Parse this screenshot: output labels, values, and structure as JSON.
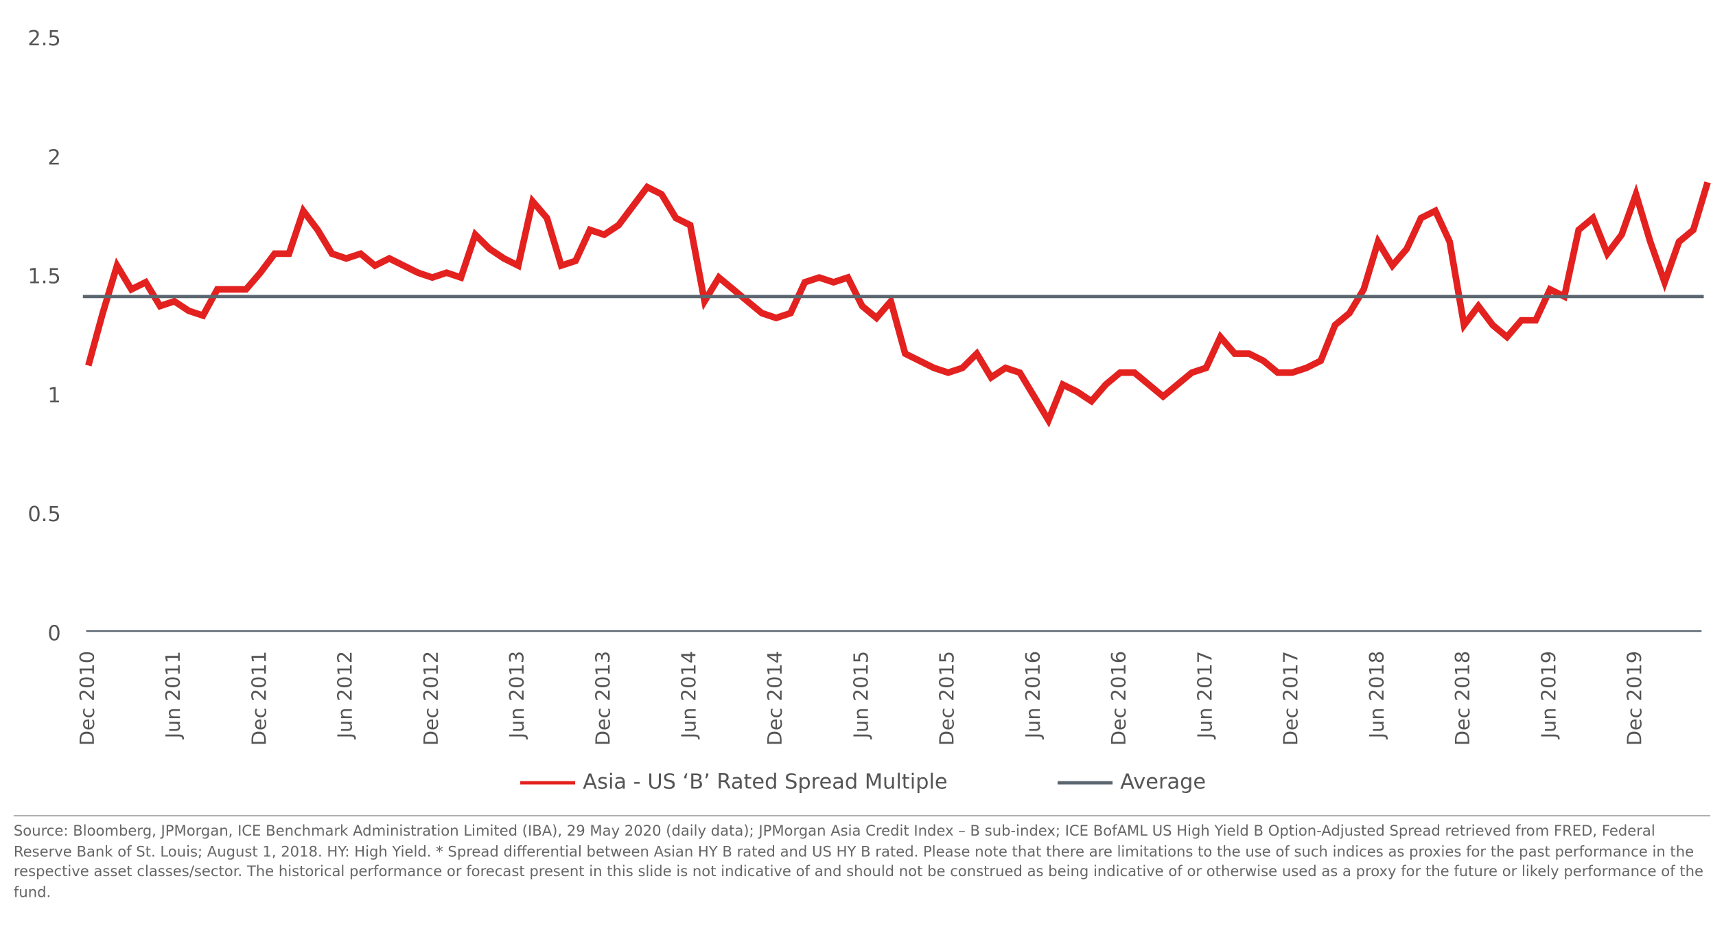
{
  "chart_data": {
    "type": "line",
    "x": [
      "Dec 2010",
      "Jan 2011",
      "Feb 2011",
      "Mar 2011",
      "Apr 2011",
      "May 2011",
      "Jun 2011",
      "Jul 2011",
      "Aug 2011",
      "Sep 2011",
      "Oct 2011",
      "Nov 2011",
      "Dec 2011",
      "Jan 2012",
      "Feb 2012",
      "Mar 2012",
      "Apr 2012",
      "May 2012",
      "Jun 2012",
      "Jul 2012",
      "Aug 2012",
      "Sep 2012",
      "Oct 2012",
      "Nov 2012",
      "Dec 2012",
      "Jan 2013",
      "Feb 2013",
      "Mar 2013",
      "Apr 2013",
      "May 2013",
      "Jun 2013",
      "Jul 2013",
      "Aug 2013",
      "Sep 2013",
      "Oct 2013",
      "Nov 2013",
      "Dec 2013",
      "Jan 2014",
      "Feb 2014",
      "Mar 2014",
      "Apr 2014",
      "May 2014",
      "Jun 2014",
      "Jul 2014",
      "Aug 2014",
      "Sep 2014",
      "Oct 2014",
      "Nov 2014",
      "Dec 2014",
      "Jan 2015",
      "Feb 2015",
      "Mar 2015",
      "Apr 2015",
      "May 2015",
      "Jun 2015",
      "Jul 2015",
      "Aug 2015",
      "Sep 2015",
      "Oct 2015",
      "Nov 2015",
      "Dec 2015",
      "Jan 2016",
      "Feb 2016",
      "Mar 2016",
      "Apr 2016",
      "May 2016",
      "Jun 2016",
      "Jul 2016",
      "Aug 2016",
      "Sep 2016",
      "Oct 2016",
      "Nov 2016",
      "Dec 2016",
      "Jan 2017",
      "Feb 2017",
      "Mar 2017",
      "Apr 2017",
      "May 2017",
      "Jun 2017",
      "Jul 2017",
      "Aug 2017",
      "Sep 2017",
      "Oct 2017",
      "Nov 2017",
      "Dec 2017",
      "Jan 2018",
      "Feb 2018",
      "Mar 2018",
      "Apr 2018",
      "May 2018",
      "Jun 2018",
      "Jul 2018",
      "Aug 2018",
      "Sep 2018",
      "Oct 2018",
      "Nov 2018",
      "Dec 2018",
      "Jan 2019",
      "Feb 2019",
      "Mar 2019",
      "Apr 2019",
      "May 2019",
      "Jun 2019",
      "Jul 2019",
      "Aug 2019",
      "Sep 2019",
      "Oct 2019",
      "Nov 2019",
      "Dec 2019",
      "Jan 2020",
      "Feb 2020",
      "Mar 2020",
      "Apr 2020",
      "May 2020"
    ],
    "xticks": [
      "Dec 2010",
      "Jun 2011",
      "Dec 2011",
      "Jun 2012",
      "Dec 2012",
      "Jun 2013",
      "Dec 2013",
      "Jun 2014",
      "Dec 2014",
      "Jun 2015",
      "Dec 2015",
      "Jun 2016",
      "Dec 2016",
      "Jun 2017",
      "Dec 2017",
      "Jun 2018",
      "Dec 2018",
      "Jun 2019",
      "Dec 2019"
    ],
    "series": [
      {
        "name": "Asia - US ‘B’ Rated Spread Multiple",
        "color": "#e3211f",
        "values": [
          1.13,
          1.35,
          1.55,
          1.45,
          1.48,
          1.38,
          1.4,
          1.36,
          1.34,
          1.45,
          1.45,
          1.45,
          1.52,
          1.6,
          1.6,
          1.78,
          1.7,
          1.6,
          1.58,
          1.6,
          1.55,
          1.58,
          1.55,
          1.52,
          1.5,
          1.52,
          1.5,
          1.68,
          1.62,
          1.58,
          1.55,
          1.82,
          1.75,
          1.55,
          1.57,
          1.7,
          1.68,
          1.72,
          1.8,
          1.88,
          1.85,
          1.75,
          1.72,
          1.4,
          1.5,
          1.45,
          1.4,
          1.35,
          1.33,
          1.35,
          1.48,
          1.5,
          1.48,
          1.5,
          1.38,
          1.33,
          1.4,
          1.18,
          1.15,
          1.12,
          1.1,
          1.12,
          1.18,
          1.08,
          1.12,
          1.1,
          1.0,
          0.9,
          1.05,
          1.02,
          0.98,
          1.05,
          1.1,
          1.1,
          1.05,
          1.0,
          1.05,
          1.1,
          1.12,
          1.25,
          1.18,
          1.18,
          1.15,
          1.1,
          1.1,
          1.12,
          1.15,
          1.3,
          1.35,
          1.45,
          1.65,
          1.55,
          1.62,
          1.75,
          1.78,
          1.65,
          1.3,
          1.38,
          1.3,
          1.25,
          1.32,
          1.32,
          1.45,
          1.42,
          1.7,
          1.75,
          1.6,
          1.68,
          1.85,
          1.65,
          1.48,
          1.65,
          1.7,
          1.9
        ]
      },
      {
        "name": "Average",
        "color": "#5b6670",
        "value": 1.42
      }
    ],
    "ylim": [
      0,
      2.5
    ],
    "yticks": [
      0,
      0.5,
      1,
      1.5,
      2,
      2.5
    ],
    "source": "Source: Bloomberg, JPMorgan, ICE Benchmark Administration Limited (IBA), 29 May 2020 (daily data); JPMorgan Asia Credit Index – B sub-index; ICE BofAML US High Yield B Option-Adjusted Spread retrieved from FRED, Federal Reserve Bank of St. Louis; August 1, 2018. HY: High Yield.  * Spread differential between Asian HY B rated and US HY B rated. Please note that there are limitations to the use of such indices as proxies for the past performance in the respective asset classes/sector. The historical performance or forecast present in this slide is not indicative of and should not be construed as being indicative of or otherwise used as a proxy for the future or likely performance of the fund."
  }
}
